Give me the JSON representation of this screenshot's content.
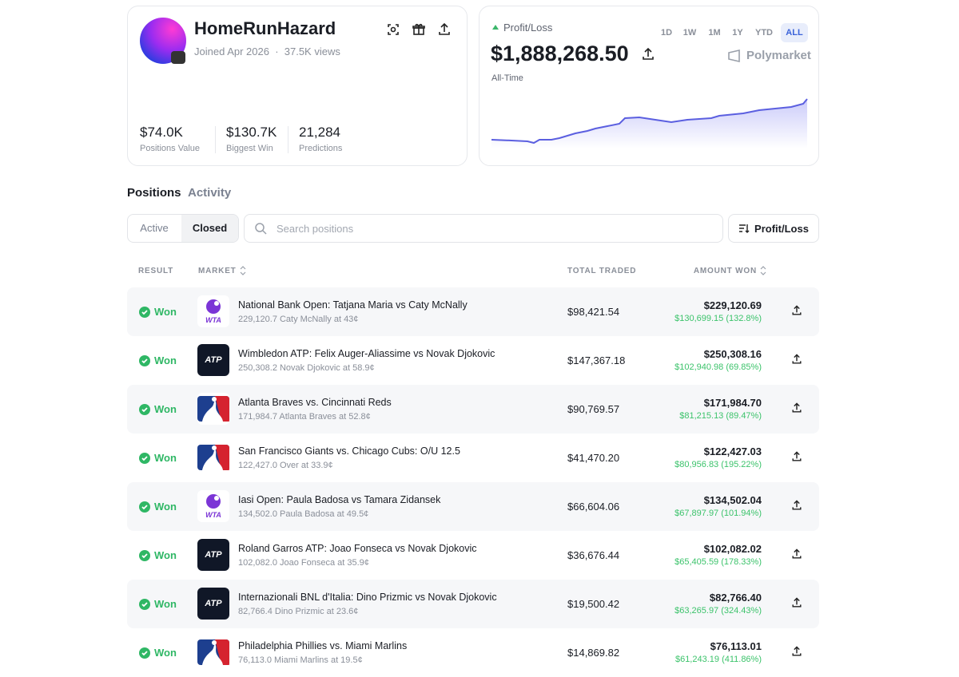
{
  "profile": {
    "name": "HomeRunHazard",
    "joined": "Joined Apr 2026",
    "views": "37.5K views",
    "stats": [
      {
        "value": "$74.0K",
        "label": "Positions Value"
      },
      {
        "value": "$130.7K",
        "label": "Biggest Win"
      },
      {
        "value": "21,284",
        "label": "Predictions"
      }
    ]
  },
  "pnl": {
    "label": "Profit/Loss",
    "ranges": [
      "1D",
      "1W",
      "1M",
      "1Y",
      "YTD",
      "ALL"
    ],
    "amount": "$1,888,268.50",
    "period": "All-Time",
    "brand": "Polymarket"
  },
  "tabs": [
    "Positions",
    "Activity"
  ],
  "filters": [
    "Active",
    "Closed"
  ],
  "search": "Search positions",
  "sort": "Profit/Loss",
  "table": {
    "headers": [
      "RESULT",
      "MARKET",
      "TOTAL TRADED",
      "AMOUNT WON"
    ],
    "rows": [
      {
        "result": "Won",
        "logo": "WTA",
        "title": "National Bank Open: Tatjana Maria vs Caty McNally",
        "subtitle": "229,120.7 Caty McNally at 43¢",
        "total": "$98,421.54",
        "amount": "$229,120.69",
        "gain": "$130,699.15 (132.8%)"
      },
      {
        "result": "Won",
        "logo": "ATP",
        "title": "Wimbledon ATP: Felix Auger-Aliassime vs Novak Djokovic",
        "subtitle": "250,308.2 Novak Djokovic at 58.9¢",
        "total": "$147,367.18",
        "amount": "$250,308.16",
        "gain": "$102,940.98 (69.85%)"
      },
      {
        "result": "Won",
        "title": "Atlanta Braves vs. Cincinnati Reds",
        "subtitle": "171,984.7 Atlanta Braves at 52.8¢",
        "total": "$90,769.57",
        "amount": "$171,984.70",
        "gain": "$81,215.13 (89.47%)"
      },
      {
        "result": "Won",
        "title": "San Francisco Giants vs. Chicago Cubs: O/U 12.5",
        "subtitle": "122,427.0 Over at 33.9¢",
        "total": "$41,470.20",
        "amount": "$122,427.03",
        "gain": "$80,956.83 (195.22%)"
      },
      {
        "result": "Won",
        "logo": "WTA",
        "title": "Iasi Open: Paula Badosa vs Tamara Zidansek",
        "subtitle": "134,502.0 Paula Badosa at 49.5¢",
        "total": "$66,604.06",
        "amount": "$134,502.04",
        "gain": "$67,897.97 (101.94%)"
      },
      {
        "result": "Won",
        "logo": "ATP",
        "title": "Roland Garros ATP: Joao Fonseca vs Novak Djokovic",
        "subtitle": "102,082.0 Joao Fonseca at 35.9¢",
        "total": "$36,676.44",
        "amount": "$102,082.02",
        "gain": "$65,405.59 (178.33%)"
      },
      {
        "result": "Won",
        "logo": "ATP",
        "title": "Internazionali BNL d'Italia: Dino Prizmic vs Novak Djokovic",
        "subtitle": "82,766.4 Dino Prizmic at 23.6¢",
        "total": "$19,500.42",
        "amount": "$82,766.40",
        "gain": "$63,265.97 (324.43%)"
      },
      {
        "result": "Won",
        "title": "Philadelphia Phillies vs. Miami Marlins",
        "subtitle": "76,113.0 Miami Marlins at 19.5¢",
        "total": "$14,869.82",
        "amount": "$76,113.01",
        "gain": "$61,243.19 (411.86%)"
      }
    ]
  }
}
